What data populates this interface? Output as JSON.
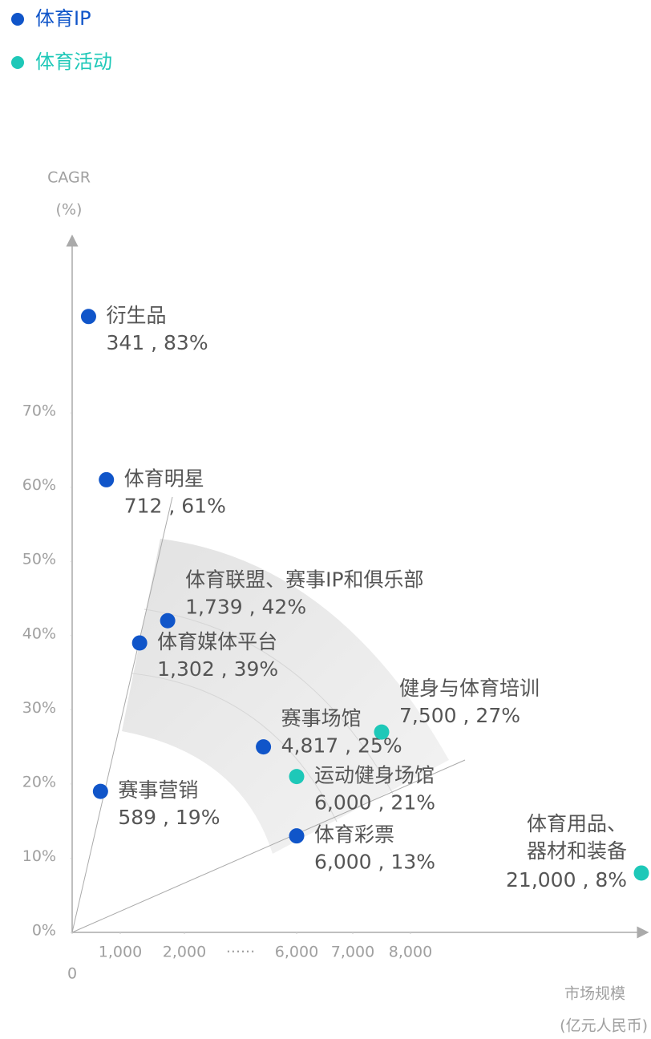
{
  "chart_data": {
    "type": "scatter",
    "series": [
      {
        "name": "体育IP",
        "color": "#1055c9",
        "labels": [
          "衍生品",
          "体育明星",
          "体育联盟、赛事IP和俱乐部",
          "体育媒体平台",
          "赛事场馆",
          "赛事营销",
          "体育彩票"
        ],
        "x": [
          341,
          712,
          1739,
          1302,
          4817,
          589,
          6000
        ],
        "values": [
          83,
          61,
          42,
          39,
          25,
          19,
          13
        ],
        "value_labels": [
          "341 , 83%",
          "712 , 61%",
          "1,739 , 42%",
          "1,302 , 39%",
          "4,817 , 25%",
          "589 , 19%",
          "6,000 , 13%"
        ]
      },
      {
        "name": "体育活动",
        "color": "#1ec8b8",
        "labels": [
          "健身与体育培训",
          "运动健身场馆",
          [
            "体育用品、",
            "器材和装备"
          ]
        ],
        "x": [
          7500,
          6000,
          21000
        ],
        "values": [
          27,
          21,
          8
        ],
        "value_labels": [
          "7,500 , 27%",
          "6,000 , 21%",
          "21,000 , 8%"
        ]
      }
    ],
    "y_label": "CAGR",
    "y_unit": "(%)",
    "x_label": "市场规模",
    "x_unit": "(亿元人民币)",
    "xlim": [
      0,
      21000
    ],
    "xticks": [
      0,
      {
        "value": 1000,
        "label": "1,000"
      },
      {
        "value": 2000,
        "label": "2,000"
      },
      {
        "value": 6000,
        "label": "6,000"
      },
      {
        "value": 7000,
        "label": "7,000"
      },
      {
        "value": 8000,
        "label": "8,000"
      }
    ],
    "x_break_label": "······",
    "ylim": [
      0,
      90
    ],
    "yticks": [
      {
        "value": 0,
        "label": "0%"
      },
      {
        "value": 10,
        "label": "10%"
      },
      {
        "value": 20,
        "label": "20%"
      },
      {
        "value": 30,
        "label": "30%"
      },
      {
        "value": 40,
        "label": "40%"
      },
      {
        "value": 50,
        "label": "50%"
      },
      {
        "value": 60,
        "label": "60%"
      },
      {
        "value": 70,
        "label": "70%"
      }
    ]
  }
}
